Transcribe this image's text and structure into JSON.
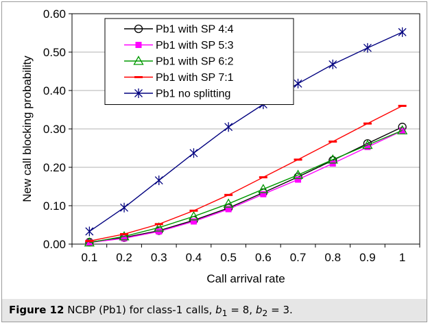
{
  "caption": {
    "label": "Figure 12",
    "text_before": "NCBP (Pb1) for class-1 calls,",
    "b1_sym": "b",
    "b1_sub": "1",
    "b1_val": "= 8,",
    "b2_sym": "b",
    "b2_sub": "2",
    "b2_val": "= 3."
  },
  "chart_data": {
    "type": "line",
    "xlabel": "Call arrival rate",
    "ylabel": "New call blocking probability",
    "x": [
      0.1,
      0.2,
      0.3,
      0.4,
      0.5,
      0.6,
      0.7,
      0.8,
      0.9,
      1.0
    ],
    "x_tick_labels": [
      "0.1",
      "0.2",
      "0.3",
      "0.4",
      "0.5",
      "0.6",
      "0.7",
      "0.8",
      "0.9",
      "1"
    ],
    "ylim": [
      0,
      0.6
    ],
    "y_ticks": [
      0,
      0.1,
      0.2,
      0.3,
      0.4,
      0.5,
      0.6
    ],
    "y_tick_labels": [
      "0.00",
      "0.10",
      "0.20",
      "0.30",
      "0.40",
      "0.50",
      "0.60"
    ],
    "grid": "horizontal",
    "legend_position": "top-left",
    "series": [
      {
        "name": "Pb1 with SP 4:4",
        "color": "#000000",
        "marker": "circle",
        "values": [
          0.005,
          0.017,
          0.035,
          0.062,
          0.094,
          0.134,
          0.175,
          0.218,
          0.262,
          0.305
        ]
      },
      {
        "name": "Pb1 with SP 5:3",
        "color": "#ff00ff",
        "marker": "square",
        "values": [
          0.004,
          0.015,
          0.033,
          0.059,
          0.091,
          0.13,
          0.168,
          0.21,
          0.253,
          0.295
        ]
      },
      {
        "name": "Pb1 with SP 6:2",
        "color": "#009900",
        "marker": "triangle",
        "values": [
          0.004,
          0.02,
          0.043,
          0.072,
          0.105,
          0.143,
          0.18,
          0.22,
          0.258,
          0.296
        ]
      },
      {
        "name": "Pb1 with SP 7:1",
        "color": "#ff0000",
        "marker": "dash",
        "values": [
          0.008,
          0.026,
          0.052,
          0.087,
          0.128,
          0.174,
          0.22,
          0.267,
          0.314,
          0.36
        ]
      },
      {
        "name": "Pb1 no splitting",
        "color": "#00007f",
        "marker": "star",
        "values": [
          0.033,
          0.095,
          0.166,
          0.237,
          0.305,
          0.364,
          0.418,
          0.468,
          0.511,
          0.552
        ]
      }
    ]
  }
}
